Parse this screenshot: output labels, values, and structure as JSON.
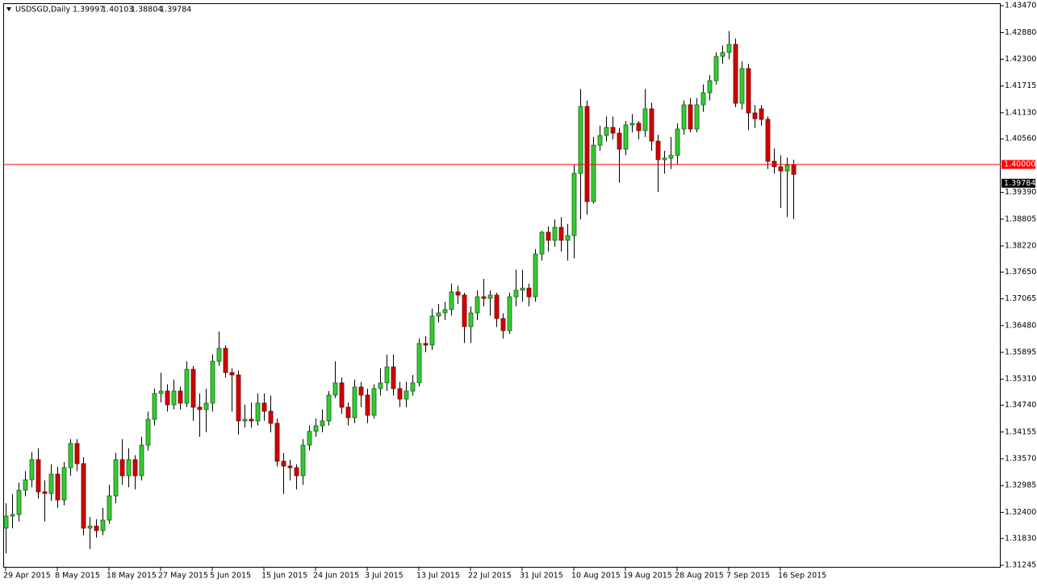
{
  "chart_data": {
    "type": "candlestick",
    "title": "USDSGD,Daily",
    "up_color": "#32cd32",
    "down_color": "#d40000",
    "wick_color": "#000000",
    "categories": [
      "29 Apr 2015",
      null,
      null,
      null,
      null,
      null,
      null,
      null,
      "8 May 2015",
      null,
      null,
      null,
      null,
      null,
      null,
      null,
      "18 May 2015",
      null,
      null,
      null,
      null,
      null,
      null,
      null,
      "27 May 2015",
      null,
      null,
      null,
      null,
      null,
      null,
      null,
      "5 Jun 2015",
      null,
      null,
      null,
      null,
      null,
      null,
      null,
      "15 Jun 2015",
      null,
      null,
      null,
      null,
      null,
      null,
      null,
      "24 Jun 2015",
      null,
      null,
      null,
      null,
      null,
      null,
      null,
      "3 Jul 2015",
      null,
      null,
      null,
      null,
      null,
      null,
      null,
      "13 Jul 2015",
      null,
      null,
      null,
      null,
      null,
      null,
      null,
      "22 Jul 2015",
      null,
      null,
      null,
      null,
      null,
      null,
      null,
      "31 Jul 2015",
      null,
      null,
      null,
      null,
      null,
      null,
      null,
      "10 Aug 2015",
      null,
      null,
      null,
      null,
      null,
      null,
      null,
      "19 Aug 2015",
      null,
      null,
      null,
      null,
      null,
      null,
      null,
      "28 Aug 2015",
      null,
      null,
      null,
      null,
      null,
      null,
      null,
      "7 Sep 2015",
      null,
      null,
      null,
      null,
      null,
      null,
      null,
      "16 Sep 2015",
      null,
      null
    ],
    "open": [
      1.32055,
      1.32319,
      1.32354,
      1.32883,
      1.33112,
      1.33552,
      1.32848,
      1.32813,
      1.33235,
      1.32671,
      1.33376,
      1.33905,
      1.33464,
      1.32055,
      1.321,
      1.32002,
      1.32231,
      1.3276,
      1.33552,
      1.332,
      1.33552,
      1.332,
      1.33869,
      1.34433,
      1.34997,
      1.3505,
      1.3475,
      1.3505,
      1.34786,
      1.35525,
      1.34697,
      1.34645,
      1.34786,
      1.35701,
      1.35983,
      1.35455,
      1.35402,
      1.34398,
      1.34433,
      1.34398,
      1.34786,
      1.34609,
      1.34345,
      1.33517,
      1.33411,
      1.33376,
      1.332,
      1.33869,
      1.34169,
      1.34292,
      1.34398,
      1.34962,
      1.35229,
      1.34697,
      1.34468,
      1.35138,
      1.34962,
      1.34521,
      1.35103,
      1.35229,
      1.35578,
      1.35103,
      1.34874,
      1.3505,
      1.35229,
      1.36089,
      1.36054,
      1.36688,
      1.36758,
      1.3683,
      1.37216,
      1.37146,
      1.36459,
      1.36758,
      1.3711,
      1.37075,
      1.37146,
      1.36635,
      1.36371,
      1.3711,
      1.37252,
      1.373,
      1.3711,
      1.38044,
      1.3852,
      1.38344,
      1.38626,
      1.38344,
      1.38449,
      1.39806,
      1.41268,
      1.39189,
      1.40422,
      1.40634,
      1.4081,
      1.40686,
      1.40334,
      1.40863,
      1.409,
      1.40739,
      1.41215,
      1.4051,
      1.40105,
      1.4014,
      1.402,
      1.40775,
      1.41303,
      1.40775,
      1.41303,
      1.41567,
      1.41832,
      1.4236,
      1.42448,
      1.42624,
      1.41338,
      1.42096,
      1.41127,
      1.41215,
      1.40986,
      1.4007,
      1.3995,
      1.39859,
      1.39997
    ],
    "high": [
      1.326,
      1.328,
      1.3305,
      1.333,
      1.3372,
      1.338,
      1.331,
      1.3345,
      1.334,
      1.335,
      1.34,
      1.34,
      1.336,
      1.323,
      1.3225,
      1.325,
      1.33,
      1.337,
      1.34,
      1.338,
      1.3365,
      1.3405,
      1.346,
      1.351,
      1.3545,
      1.352,
      1.353,
      1.3515,
      1.357,
      1.356,
      1.35,
      1.351,
      1.3585,
      1.3635,
      1.3605,
      1.3555,
      1.355,
      1.3475,
      1.348,
      1.35,
      1.35,
      1.3495,
      1.3445,
      1.337,
      1.3355,
      1.3345,
      1.34,
      1.343,
      1.3445,
      1.3465,
      1.3505,
      1.357,
      1.3535,
      1.348,
      1.353,
      1.3525,
      1.351,
      1.352,
      1.3555,
      1.3585,
      1.3585,
      1.3525,
      1.3525,
      1.354,
      1.362,
      1.3625,
      1.3685,
      1.3695,
      1.37,
      1.374,
      1.3735,
      1.372,
      1.369,
      1.3725,
      1.375,
      1.3725,
      1.372,
      1.3675,
      1.372,
      1.377,
      1.377,
      1.374,
      1.3815,
      1.3855,
      1.3865,
      1.388,
      1.3885,
      1.387,
      1.4,
      1.4165,
      1.414,
      1.406,
      1.4085,
      1.4105,
      1.4105,
      1.408,
      1.4095,
      1.411,
      1.4095,
      1.4165,
      1.4135,
      1.4065,
      1.403,
      1.406,
      1.409,
      1.414,
      1.4145,
      1.4145,
      1.4175,
      1.4195,
      1.4245,
      1.426,
      1.42917,
      1.4275,
      1.4225,
      1.422,
      1.413,
      1.413,
      1.4105,
      1.4035,
      1.402,
      1.4015,
      1.40103
    ],
    "low": [
      1.315,
      1.3205,
      1.322,
      1.3275,
      1.3295,
      1.327,
      1.322,
      1.3265,
      1.325,
      1.3255,
      1.332,
      1.333,
      1.319,
      1.316,
      1.3185,
      1.319,
      1.3215,
      1.326,
      1.33,
      1.3295,
      1.329,
      1.331,
      1.3375,
      1.343,
      1.348,
      1.346,
      1.3465,
      1.3465,
      1.347,
      1.344,
      1.3405,
      1.3415,
      1.346,
      1.356,
      1.3535,
      1.346,
      1.341,
      1.3425,
      1.3425,
      1.343,
      1.344,
      1.3415,
      1.334,
      1.328,
      1.331,
      1.329,
      1.33,
      1.3375,
      1.3405,
      1.3415,
      1.343,
      1.349,
      1.3455,
      1.343,
      1.3435,
      1.347,
      1.3435,
      1.3445,
      1.3495,
      1.3505,
      1.3495,
      1.347,
      1.347,
      1.3495,
      1.3515,
      1.359,
      1.3595,
      1.3655,
      1.366,
      1.367,
      1.3695,
      1.361,
      1.361,
      1.366,
      1.369,
      1.367,
      1.3645,
      1.362,
      1.363,
      1.369,
      1.37,
      1.369,
      1.37,
      1.379,
      1.381,
      1.382,
      1.381,
      1.379,
      1.3795,
      1.388,
      1.389,
      1.3915,
      1.403,
      1.405,
      1.4055,
      1.396,
      1.402,
      1.407,
      1.4055,
      1.406,
      1.403,
      1.394,
      1.398,
      1.399,
      1.4,
      1.4065,
      1.407,
      1.407,
      1.4115,
      1.414,
      1.4175,
      1.422,
      1.423,
      1.4125,
      1.412,
      1.4075,
      1.408,
      1.4085,
      1.399,
      1.398,
      1.3905,
      1.3885,
      1.38804
    ],
    "close": [
      1.32319,
      1.32354,
      1.32883,
      1.33112,
      1.33552,
      1.32848,
      1.32813,
      1.33235,
      1.32671,
      1.33376,
      1.33905,
      1.33464,
      1.32055,
      1.321,
      1.32002,
      1.32231,
      1.3276,
      1.33552,
      1.332,
      1.33552,
      1.332,
      1.33869,
      1.34433,
      1.34997,
      1.3505,
      1.3475,
      1.3505,
      1.34786,
      1.35525,
      1.34697,
      1.34645,
      1.34786,
      1.35701,
      1.35983,
      1.35455,
      1.35402,
      1.34398,
      1.34433,
      1.34398,
      1.34786,
      1.34609,
      1.34345,
      1.33517,
      1.33411,
      1.33376,
      1.332,
      1.33869,
      1.34169,
      1.34292,
      1.34398,
      1.34962,
      1.35229,
      1.34697,
      1.34468,
      1.35138,
      1.34962,
      1.34521,
      1.35103,
      1.35229,
      1.35578,
      1.35103,
      1.34874,
      1.3505,
      1.35229,
      1.36089,
      1.36054,
      1.36688,
      1.36758,
      1.3683,
      1.37216,
      1.37146,
      1.36459,
      1.36758,
      1.3711,
      1.37075,
      1.37146,
      1.36635,
      1.36371,
      1.3711,
      1.37252,
      1.373,
      1.3711,
      1.38044,
      1.3852,
      1.38344,
      1.38626,
      1.38344,
      1.38449,
      1.39806,
      1.41268,
      1.39189,
      1.40422,
      1.40634,
      1.4081,
      1.40686,
      1.40334,
      1.40863,
      1.409,
      1.40739,
      1.41215,
      1.4051,
      1.40105,
      1.4014,
      1.402,
      1.40775,
      1.41303,
      1.40775,
      1.41303,
      1.41567,
      1.41832,
      1.4236,
      1.42448,
      1.42624,
      1.41338,
      1.42096,
      1.41127,
      1.41,
      1.40986,
      1.4007,
      1.3995,
      1.39859,
      1.39982,
      1.39784
    ],
    "ylim": [
      1.31192,
      1.43523
    ],
    "yticks": [
      {
        "value": 1.4347,
        "label": "1.43470"
      },
      {
        "value": 1.4288,
        "label": "1.42880"
      },
      {
        "value": 1.423,
        "label": "1.42300"
      },
      {
        "value": 1.41715,
        "label": "1.41715"
      },
      {
        "value": 1.4113,
        "label": "1.41130"
      },
      {
        "value": 1.4056,
        "label": "1.40560"
      },
      {
        "value": 1.3939,
        "label": "1.39390"
      },
      {
        "value": 1.38805,
        "label": "1.38805"
      },
      {
        "value": 1.3822,
        "label": "1.38220"
      },
      {
        "value": 1.3765,
        "label": "1.37650"
      },
      {
        "value": 1.37065,
        "label": "1.37065"
      },
      {
        "value": 1.3648,
        "label": "1.36480"
      },
      {
        "value": 1.35895,
        "label": "1.35895"
      },
      {
        "value": 1.3531,
        "label": "1.35310"
      },
      {
        "value": 1.3474,
        "label": "1.34740"
      },
      {
        "value": 1.34155,
        "label": "1.34155"
      },
      {
        "value": 1.3357,
        "label": "1.33570"
      },
      {
        "value": 1.32985,
        "label": "1.32985"
      },
      {
        "value": 1.324,
        "label": "1.32400"
      },
      {
        "value": 1.3183,
        "label": "1.31830"
      },
      {
        "value": 1.31245,
        "label": "1.31245"
      }
    ],
    "reference_line": {
      "value": 1.4,
      "label": "1.40000",
      "color": "#ff0000"
    }
  }
}
